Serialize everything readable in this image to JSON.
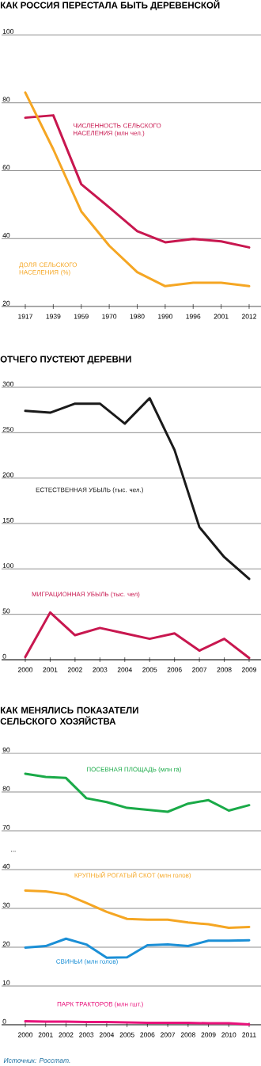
{
  "chart_data": [
    {
      "type": "line",
      "title": "КАК РОССИЯ ПЕРЕСТАЛА БЫТЬ ДЕРЕВЕНСКОЙ",
      "categories": [
        "1917",
        "1939",
        "1959",
        "1970",
        "1980",
        "1990",
        "1996",
        "2001",
        "2012"
      ],
      "ylim": [
        20,
        100
      ],
      "yticks": [
        20,
        40,
        60,
        80,
        100
      ],
      "grid": "y",
      "series": [
        {
          "name": "ЧИСЛЕННОСТЬ СЕЛЬСКОГО НАСЕЛЕНИЯ (млн чел.)",
          "color": "#c8174f",
          "values": [
            75.6,
            76.3,
            56.0,
            49.2,
            42.2,
            38.9,
            39.9,
            39.2,
            37.4
          ]
        },
        {
          "name": "ДОЛЯ СЕЛЬСКОГО НАСЕЛЕНИЯ (%)",
          "color": "#f5a623",
          "values": [
            83.0,
            66.3,
            48.0,
            37.9,
            30.1,
            26.0,
            27.0,
            27.0,
            26.0
          ]
        }
      ]
    },
    {
      "type": "line",
      "title": "ОТЧЕГО ПУСТЕЮТ ДЕРЕВНИ",
      "categories": [
        "2000",
        "2001",
        "2002",
        "2003",
        "2004",
        "2005",
        "2006",
        "2007",
        "2008",
        "2009"
      ],
      "ylim": [
        0,
        300
      ],
      "yticks": [
        0,
        50,
        100,
        150,
        200,
        250,
        300
      ],
      "grid": "y",
      "series": [
        {
          "name": "ЕСТЕСТВЕННАЯ УБЫЛЬ (тыс. чел.)",
          "color": "#1a1a1a",
          "values": [
            274,
            272,
            282,
            282,
            260,
            288,
            231,
            146,
            113,
            89
          ]
        },
        {
          "name": "МИГРАЦИОННАЯ УБЫЛЬ (тыс. чел)",
          "color": "#c8174f",
          "values": [
            3,
            52,
            27,
            35,
            29,
            23,
            29,
            10,
            23,
            2
          ]
        }
      ]
    },
    {
      "type": "line",
      "title": "КАК МЕНЯЛИСЬ ПОКАЗАТЕЛИ СЕЛЬСКОГО ХОЗЯЙСТВА",
      "categories": [
        "2000",
        "2001",
        "2002",
        "2003",
        "2004",
        "2005",
        "2006",
        "2007",
        "2008",
        "2009",
        "2010",
        "2011"
      ],
      "ylim": [
        70,
        90
      ],
      "yticks": [
        70,
        80,
        90
      ],
      "grid": "y",
      "tick_labels": "y",
      "series": [
        {
          "name": "ПОСЕВНАЯ ПЛОЩАДЬ (млн га)",
          "color": "#1aaa48",
          "values": [
            84.7,
            83.9,
            83.6,
            78.4,
            77.4,
            75.9,
            75.4,
            74.9,
            77.0,
            77.9,
            75.2,
            76.6
          ]
        }
      ]
    },
    {
      "type": "line",
      "categories": [
        "2000",
        "2001",
        "2002",
        "2003",
        "2004",
        "2005",
        "2006",
        "2007",
        "2008",
        "2009",
        "2010",
        "2011"
      ],
      "ylim": [
        0,
        40
      ],
      "yticks": [
        0,
        10,
        20,
        30,
        40
      ],
      "grid": "y",
      "annotations": [
        "...",
        "Источник: Росстат."
      ],
      "series": [
        {
          "name": "КРУПНЫЙ РОГАТЫЙ СКОТ (млн голов)",
          "color": "#f5a623",
          "values": [
            34.6,
            34.4,
            33.6,
            31.4,
            29.1,
            27.3,
            27.1,
            27.1,
            26.4,
            25.9,
            25.0,
            25.2
          ]
        },
        {
          "name": "СВИНЬИ (млн голов)",
          "color": "#1b8fd6",
          "values": [
            19.9,
            20.3,
            22.2,
            20.7,
            17.3,
            17.4,
            20.5,
            20.7,
            20.3,
            21.7,
            21.7,
            21.8
          ]
        },
        {
          "name": "ПАРК ТРАКТОРОВ (млн гшт.)",
          "color": "#e8127b",
          "values": [
            0.9,
            0.8,
            0.8,
            0.7,
            0.7,
            0.6,
            0.5,
            0.5,
            0.5,
            0.4,
            0.4,
            0.1
          ]
        }
      ]
    }
  ]
}
